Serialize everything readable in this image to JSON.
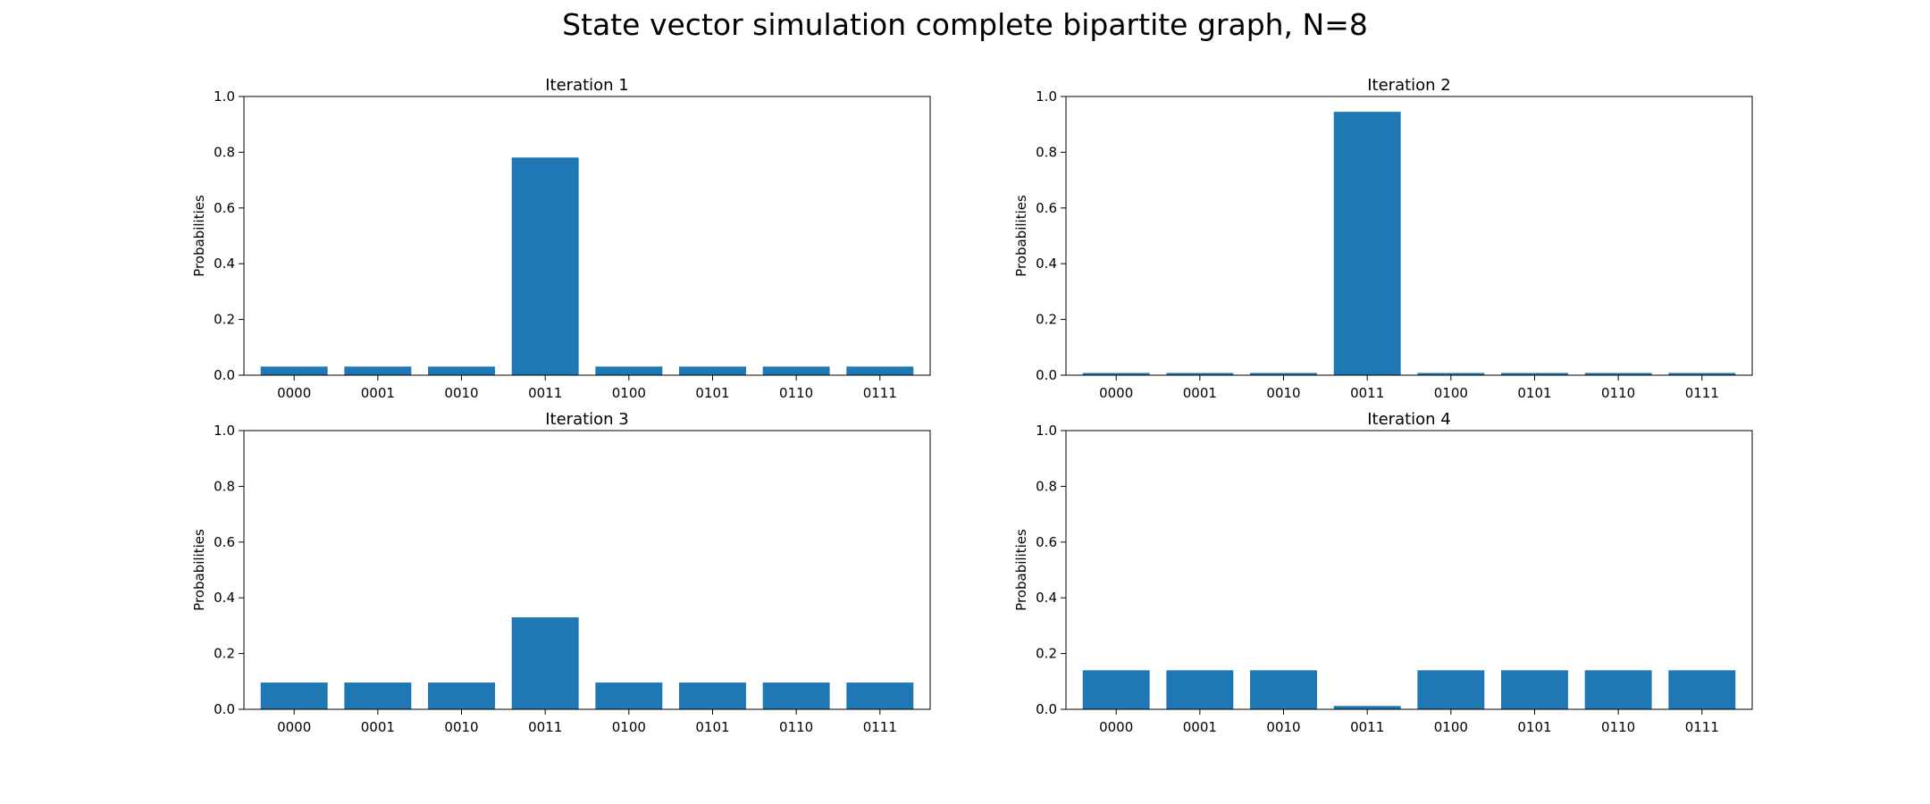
{
  "figure": {
    "title": "State vector simulation complete bipartite graph, N=8"
  },
  "chart_data": [
    {
      "type": "bar",
      "title": "Iteration 1",
      "xlabel": "",
      "ylabel": "Probabilities",
      "ylim": [
        0,
        1.0
      ],
      "yticks": [
        "0.0",
        "0.2",
        "0.4",
        "0.6",
        "0.8",
        "1.0"
      ],
      "categories": [
        "0000",
        "0001",
        "0010",
        "0011",
        "0100",
        "0101",
        "0110",
        "0111"
      ],
      "values": [
        0.031,
        0.031,
        0.031,
        0.781,
        0.031,
        0.031,
        0.031,
        0.031
      ],
      "color": "#1f77b4",
      "grid": false
    },
    {
      "type": "bar",
      "title": "Iteration 2",
      "xlabel": "",
      "ylabel": "Probabilities",
      "ylim": [
        0,
        1.0
      ],
      "yticks": [
        "0.0",
        "0.2",
        "0.4",
        "0.6",
        "0.8",
        "1.0"
      ],
      "categories": [
        "0000",
        "0001",
        "0010",
        "0011",
        "0100",
        "0101",
        "0110",
        "0111"
      ],
      "values": [
        0.008,
        0.008,
        0.008,
        0.945,
        0.008,
        0.008,
        0.008,
        0.008
      ],
      "color": "#1f77b4",
      "grid": false
    },
    {
      "type": "bar",
      "title": "Iteration 3",
      "xlabel": "",
      "ylabel": "Probabilities",
      "ylim": [
        0,
        1.0
      ],
      "yticks": [
        "0.0",
        "0.2",
        "0.4",
        "0.6",
        "0.8",
        "1.0"
      ],
      "categories": [
        "0000",
        "0001",
        "0010",
        "0011",
        "0100",
        "0101",
        "0110",
        "0111"
      ],
      "values": [
        0.096,
        0.096,
        0.096,
        0.33,
        0.096,
        0.096,
        0.096,
        0.096
      ],
      "color": "#1f77b4",
      "grid": false
    },
    {
      "type": "bar",
      "title": "Iteration 4",
      "xlabel": "",
      "ylabel": "Probabilities",
      "ylim": [
        0,
        1.0
      ],
      "yticks": [
        "0.0",
        "0.2",
        "0.4",
        "0.6",
        "0.8",
        "1.0"
      ],
      "categories": [
        "0000",
        "0001",
        "0010",
        "0011",
        "0100",
        "0101",
        "0110",
        "0111"
      ],
      "values": [
        0.14,
        0.14,
        0.14,
        0.012,
        0.14,
        0.14,
        0.14,
        0.14
      ],
      "color": "#1f77b4",
      "grid": false
    }
  ]
}
